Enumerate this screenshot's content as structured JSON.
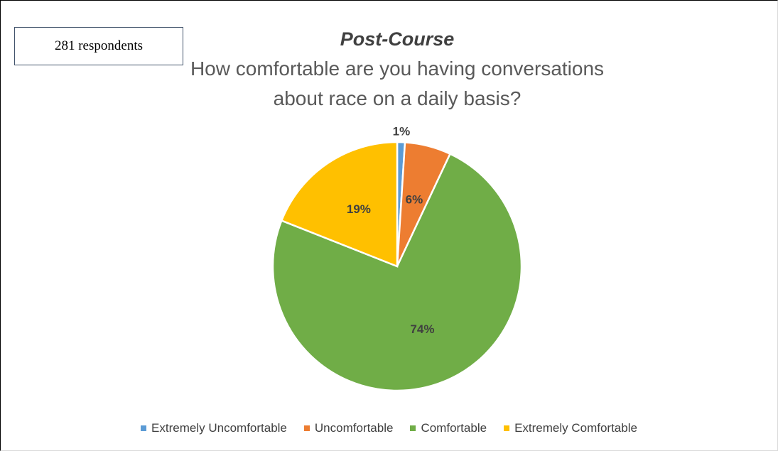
{
  "chart_data": {
    "type": "pie",
    "title": "Post-Course",
    "subtitle": "How comfortable are you having conversations about race on a daily basis?",
    "annotation": "281 respondents",
    "categories": [
      "Extremely Uncomfortable",
      "Uncomfortable",
      "Comfortable",
      "Extremely Comfortable"
    ],
    "values": [
      1,
      6,
      74,
      19
    ],
    "value_labels": [
      "1%",
      "6%",
      "74%",
      "19%"
    ],
    "colors": [
      "#5b9bd5",
      "#ed7d31",
      "#70ad47",
      "#ffc000"
    ],
    "legend": "bottom"
  }
}
